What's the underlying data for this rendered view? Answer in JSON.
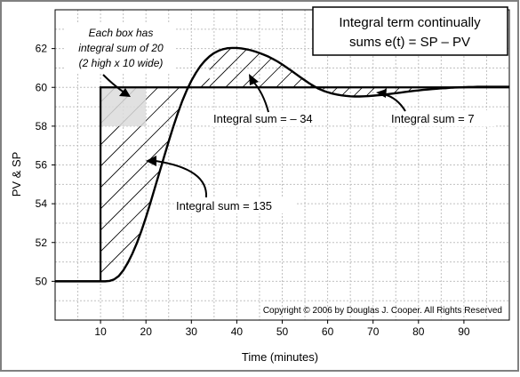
{
  "colors": {
    "frame": "#808080",
    "grid": "#c0c0c0",
    "line": "#000000",
    "box_fill": "#dcdcdc",
    "hatch": "#000000"
  },
  "box_note": {
    "line1": "Each box has",
    "line2": "integral sum of 20",
    "line3": "(2 high x 10 wide)"
  },
  "title": {
    "line1": "Integral term continually",
    "line2": "sums e(t) = SP – PV"
  },
  "copyright": "Copyright © 2006 by Douglas J. Cooper.  All Rights Reserved",
  "chart_data": {
    "type": "line",
    "xlabel": "Time (minutes)",
    "ylabel": "PV & SP",
    "xlim": [
      0,
      100
    ],
    "ylim": [
      48,
      64
    ],
    "x_ticks": [
      10,
      20,
      30,
      40,
      50,
      60,
      70,
      80,
      90
    ],
    "y_ticks": [
      50,
      52,
      54,
      56,
      58,
      60,
      62
    ],
    "x_grid_step": 5,
    "y_grid_step": 1,
    "grid": true,
    "series": [
      {
        "role": "set point",
        "x": [
          0,
          10,
          10,
          100
        ],
        "y": [
          50,
          50,
          60,
          60
        ]
      },
      {
        "role": "process variable",
        "x": [
          0,
          10,
          11,
          12,
          13,
          14,
          15,
          16,
          17,
          18,
          19,
          20,
          21,
          22,
          23,
          24,
          25,
          26,
          27,
          28,
          29,
          30,
          31,
          32,
          33,
          34,
          35,
          36,
          37,
          38,
          39,
          40,
          41,
          42,
          43,
          44,
          45,
          46,
          47,
          48,
          49,
          50,
          51,
          52,
          53,
          54,
          55,
          56,
          57,
          58,
          59,
          60,
          61,
          62,
          63,
          64,
          65,
          66,
          67,
          68,
          69,
          70,
          71,
          72,
          73,
          74,
          75,
          76,
          77,
          78,
          79,
          80,
          81,
          82,
          83,
          84,
          85,
          86,
          87,
          88,
          89,
          90,
          91,
          92,
          93,
          94,
          95,
          96,
          97,
          98,
          99,
          100
        ],
        "y": [
          50,
          50,
          50,
          50.02,
          50.1,
          50.27,
          50.56,
          50.95,
          51.42,
          51.97,
          52.6,
          53.3,
          54.06,
          54.85,
          55.64,
          56.43,
          57.21,
          57.96,
          58.66,
          59.3,
          59.86,
          60.34,
          60.75,
          61.1,
          61.38,
          61.6,
          61.77,
          61.89,
          61.97,
          62.02,
          62.03,
          62.03,
          62.01,
          61.97,
          61.92,
          61.85,
          61.77,
          61.68,
          61.58,
          61.46,
          61.33,
          61.18,
          61.02,
          60.86,
          60.69,
          60.52,
          60.36,
          60.2,
          60.06,
          59.93,
          59.83,
          59.75,
          59.68,
          59.63,
          59.59,
          59.56,
          59.54,
          59.53,
          59.53,
          59.54,
          59.55,
          59.57,
          59.59,
          59.61,
          59.64,
          59.67,
          59.7,
          59.73,
          59.76,
          59.79,
          59.82,
          59.84,
          59.87,
          59.89,
          59.91,
          59.93,
          59.95,
          59.96,
          59.98,
          59.99,
          60,
          60.01,
          60.02,
          60.02,
          60.03,
          60.03,
          60.03,
          60.03,
          60.03,
          60.03,
          60.03,
          60.03
        ]
      }
    ],
    "shaded_box": {
      "x": [
        10,
        20
      ],
      "y": [
        58,
        60
      ]
    },
    "annotations": [
      {
        "text": "Integral sum = 135",
        "region": "between set point and PV, t = 10 to 34"
      },
      {
        "text": "Integral sum = – 34",
        "region": "PV above set point, t = 34 to 59"
      },
      {
        "text": "Integral sum = 7",
        "region": "PV below set point, t = 59 to 80"
      }
    ]
  }
}
